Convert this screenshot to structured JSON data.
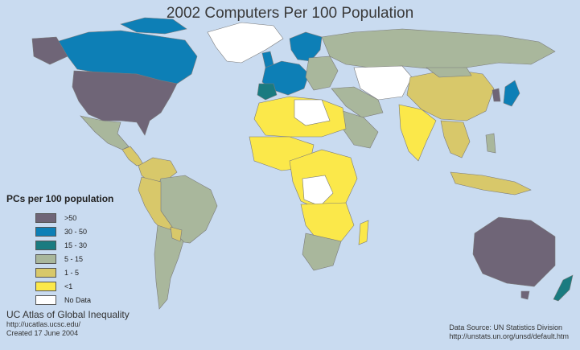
{
  "title": "2002 Computers Per 100 Population",
  "colors": {
    "ocean": "#c9dbf0",
    "over50": "#6f6577",
    "r30_50": "#0d7fb6",
    "r15_30": "#1a7b80",
    "r5_15": "#a9b79c",
    "r1_5": "#d8c86a",
    "under1": "#fbe84a",
    "nodata": "#ffffff"
  },
  "legend": {
    "title": "PCs per 100 population",
    "items": [
      {
        "label": ">50",
        "color": "#6f6577"
      },
      {
        "label": "30 - 50",
        "color": "#0d7fb6"
      },
      {
        "label": "15 - 30",
        "color": "#1a7b80"
      },
      {
        "label": "5 - 15",
        "color": "#a9b79c"
      },
      {
        "label": "1 - 5",
        "color": "#d8c86a"
      },
      {
        "label": "<1",
        "color": "#fbe84a"
      },
      {
        "label": "No Data",
        "color": "#ffffff"
      }
    ]
  },
  "credit": {
    "org": "UC Atlas of Global Inequality",
    "url": "http://ucatlas.ucsc.edu/",
    "created": "Created 17 June 2004"
  },
  "source": {
    "label": "Data Source: UN Statistics Division",
    "url": "http://unstats.un.org/unsd/default.htm"
  }
}
